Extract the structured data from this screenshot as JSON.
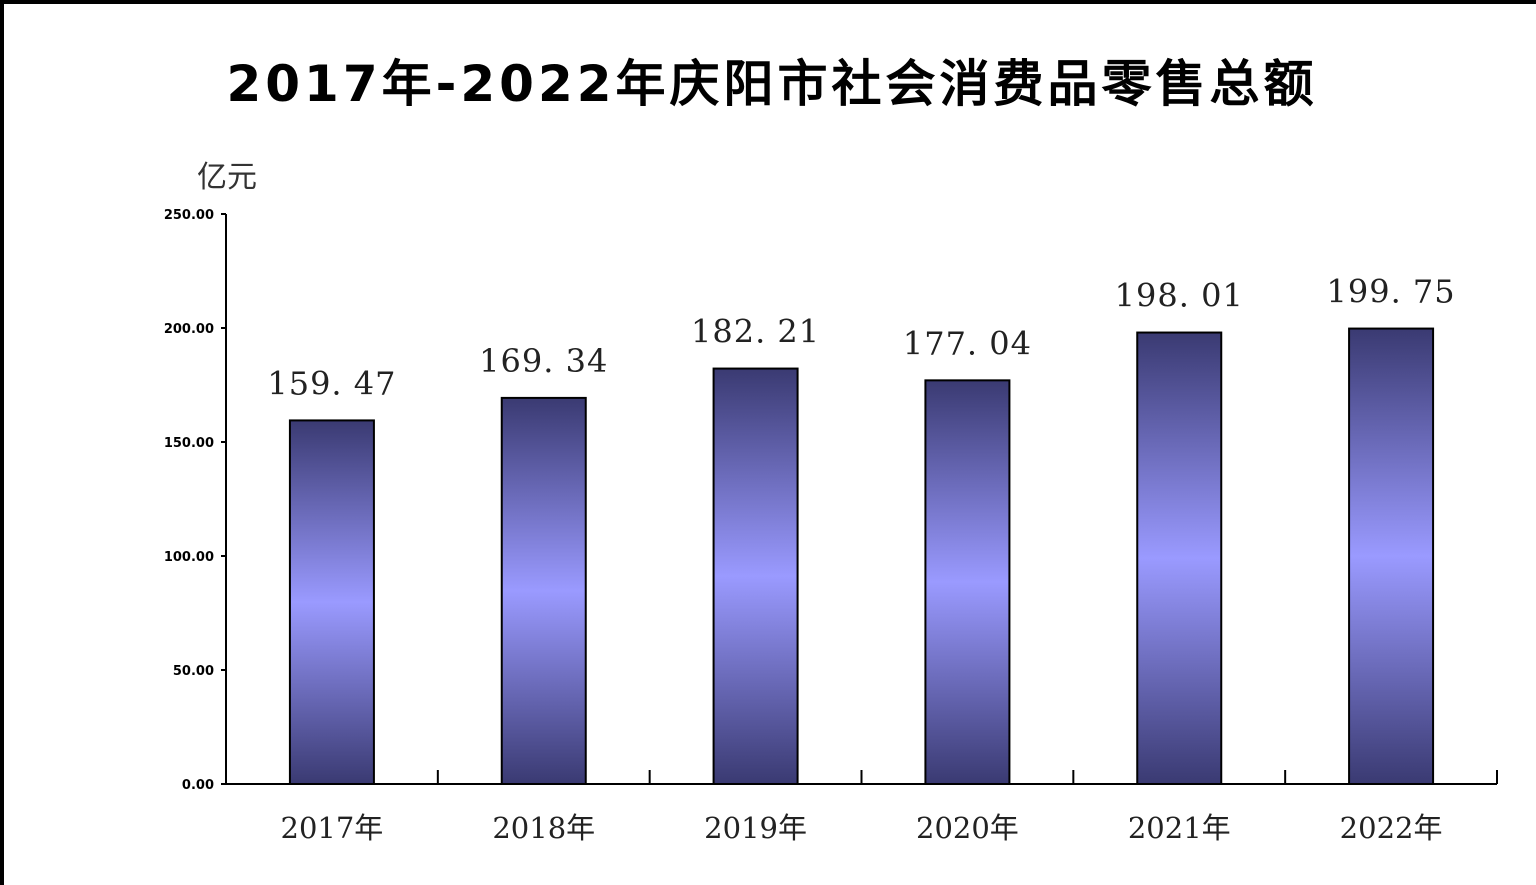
{
  "chart_data": {
    "type": "bar",
    "title": "2017年-2022年庆阳市社会消费品零售总额",
    "ylabel": "亿元",
    "xlabel": "",
    "categories": [
      "2017年",
      "2018年",
      "2019年",
      "2020年",
      "2021年",
      "2022年"
    ],
    "values": [
      159.47,
      169.34,
      182.21,
      177.04,
      198.01,
      199.75
    ],
    "value_labels": [
      "159. 47",
      "169. 34",
      "182. 21",
      "177. 04",
      "198. 01",
      "199. 75"
    ],
    "ylim": [
      0,
      250
    ],
    "yticks": [
      0,
      50,
      100,
      150,
      200,
      250
    ],
    "ytick_labels": [
      "0.00",
      "50.00",
      "100.00",
      "150.00",
      "200.00",
      "250.00"
    ],
    "grid": false,
    "legend": "none",
    "bar_gradient": {
      "edge_color": "#3a3a72",
      "center_color": "#9a9aff",
      "outline_color": "#000000"
    }
  }
}
